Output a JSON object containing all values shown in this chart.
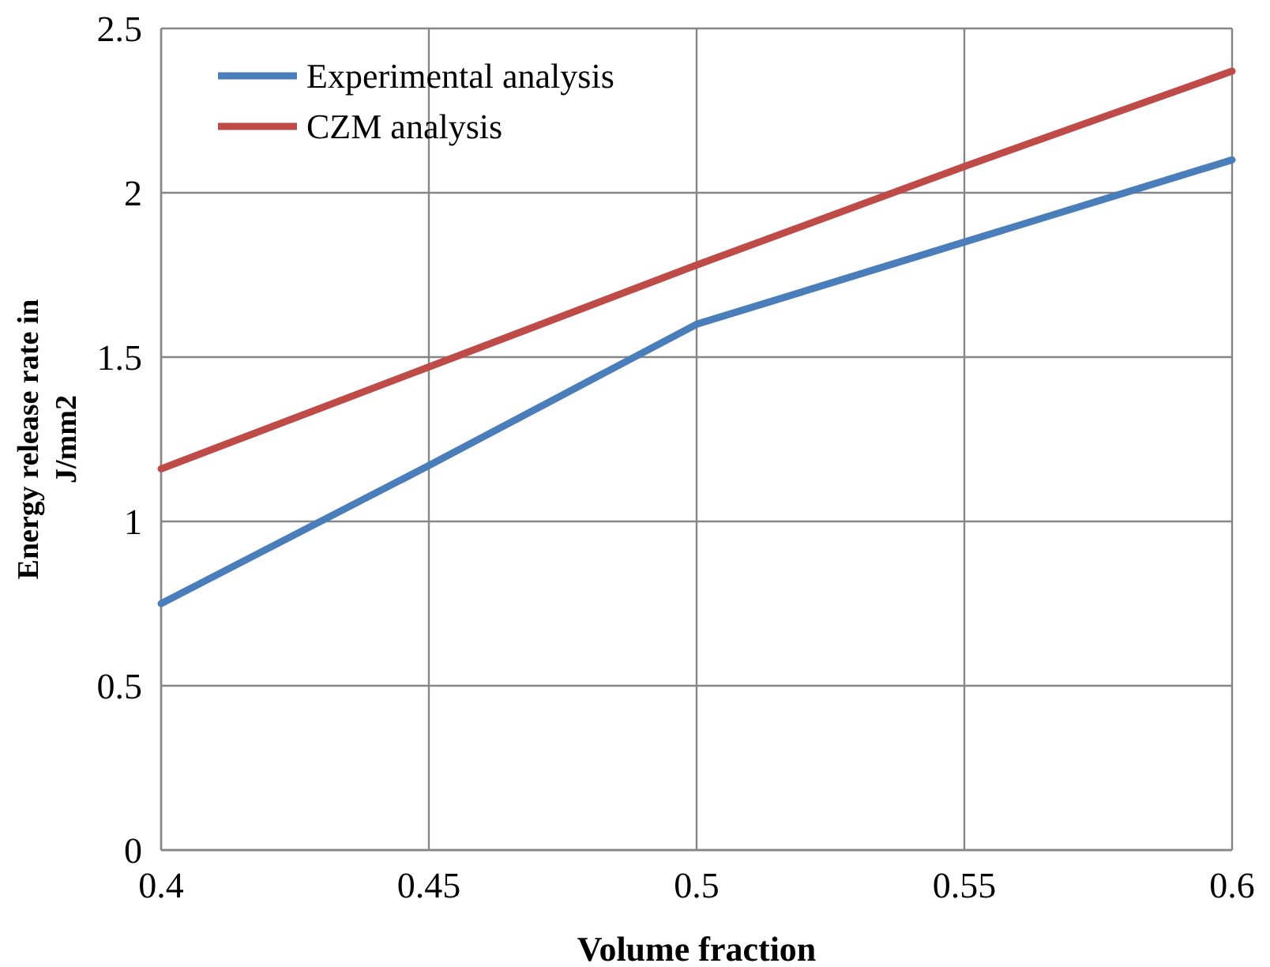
{
  "chart_data": {
    "type": "line",
    "xlabel": "Volume fraction",
    "ylabel": "Energy release rate in J/mm2",
    "x": [
      0.4,
      0.45,
      0.5,
      0.55,
      0.6
    ],
    "series": [
      {
        "name": "Experimental analysis",
        "color": "#4a7ebb",
        "values": [
          0.75,
          1.17,
          1.6,
          1.85,
          2.1
        ]
      },
      {
        "name": "CZM analysis",
        "color": "#be4b48",
        "values": [
          1.16,
          1.47,
          1.78,
          2.08,
          2.37
        ]
      }
    ],
    "xlim": [
      0.4,
      0.6
    ],
    "xticks": [
      0.4,
      0.45,
      0.5,
      0.55,
      0.6
    ],
    "ylim": [
      0,
      2.5
    ],
    "yticks": [
      0,
      0.5,
      1,
      1.5,
      2,
      2.5
    ],
    "grid": true,
    "legend": "top left",
    "marker": "none",
    "line_style": "solid"
  }
}
